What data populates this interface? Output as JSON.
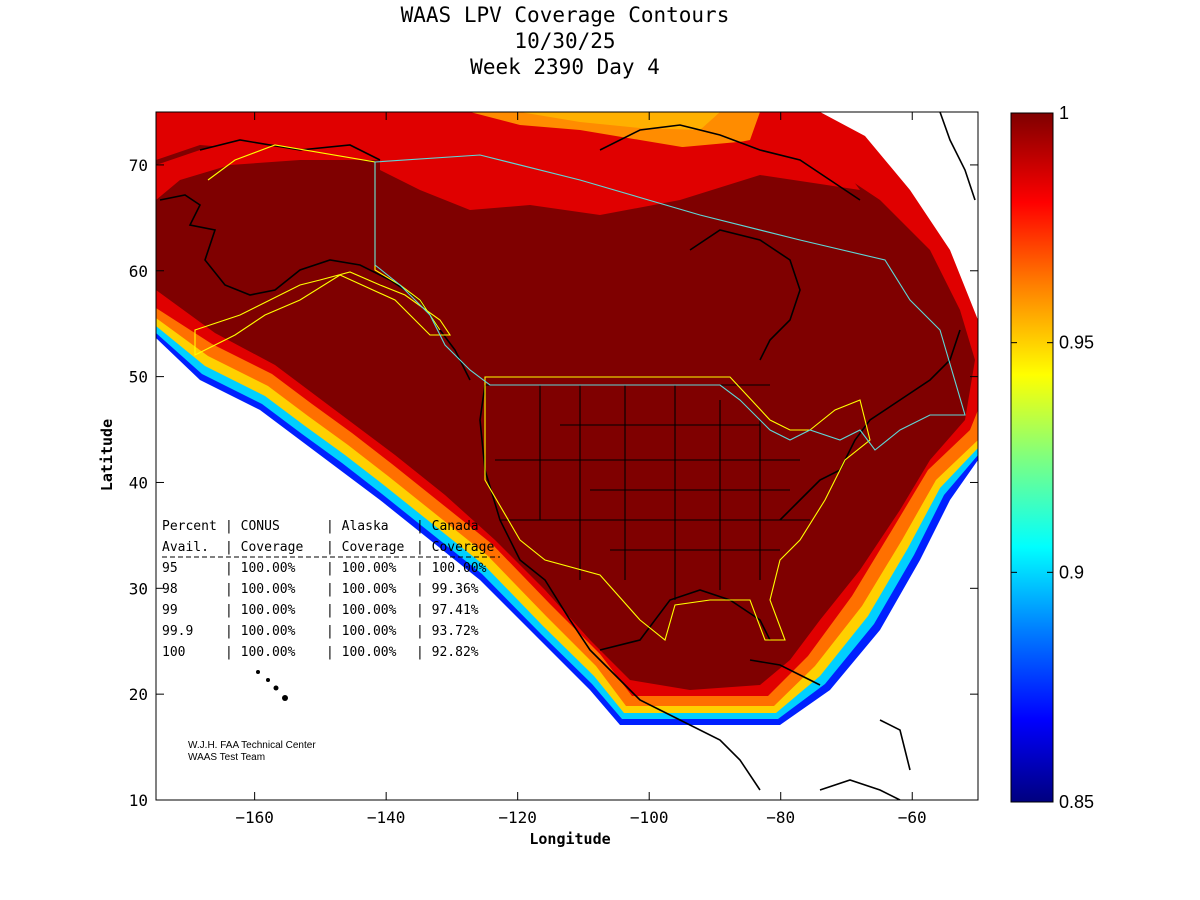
{
  "title": {
    "line1": "WAAS LPV Coverage Contours",
    "line2": "10/30/25",
    "line3": "Week 2390 Day 4"
  },
  "axes": {
    "xlabel": "Longitude",
    "ylabel": "Latitude",
    "xlim": [
      -175,
      -50
    ],
    "ylim": [
      10,
      75
    ],
    "xticks": [
      -160,
      -140,
      -120,
      -100,
      -80,
      -60
    ],
    "yticks": [
      10,
      20,
      30,
      40,
      50,
      60,
      70
    ]
  },
  "colorbar": {
    "range": [
      0.85,
      1
    ],
    "ticks": [
      {
        "value": 1,
        "label": "1"
      },
      {
        "value": 0.95,
        "label": "0.95"
      },
      {
        "value": 0.9,
        "label": "0.9"
      },
      {
        "value": 0.85,
        "label": "0.85"
      }
    ],
    "colors": [
      "#00007f",
      "#0000ff",
      "#007fff",
      "#00ffff",
      "#7fff7f",
      "#ffff00",
      "#ff7f00",
      "#ff0000",
      "#7f0000"
    ]
  },
  "coverage_table": {
    "header1": [
      "Percent",
      "CONUS",
      "Alaska",
      "Canada"
    ],
    "header2": [
      "Avail.",
      "Coverage",
      "Coverage",
      "Coverage"
    ],
    "rows": [
      [
        "95",
        "100.00%",
        "100.00%",
        "100.00%"
      ],
      [
        "98",
        "100.00%",
        "100.00%",
        "99.36%"
      ],
      [
        "99",
        "100.00%",
        "100.00%",
        "97.41%"
      ],
      [
        "99.9",
        "100.00%",
        "100.00%",
        "93.72%"
      ],
      [
        "100",
        "100.00%",
        "100.00%",
        "92.82%"
      ]
    ]
  },
  "credit": {
    "line1": "W.J.H. FAA Technical Center",
    "line2": "WAAS Test Team"
  },
  "colors": {
    "dark_red": "#7f0000",
    "red": "#e00000",
    "orange": "#ff8c00",
    "region_outline_yellow": "#ffff00",
    "region_outline_cyan": "#5fd7d7"
  }
}
